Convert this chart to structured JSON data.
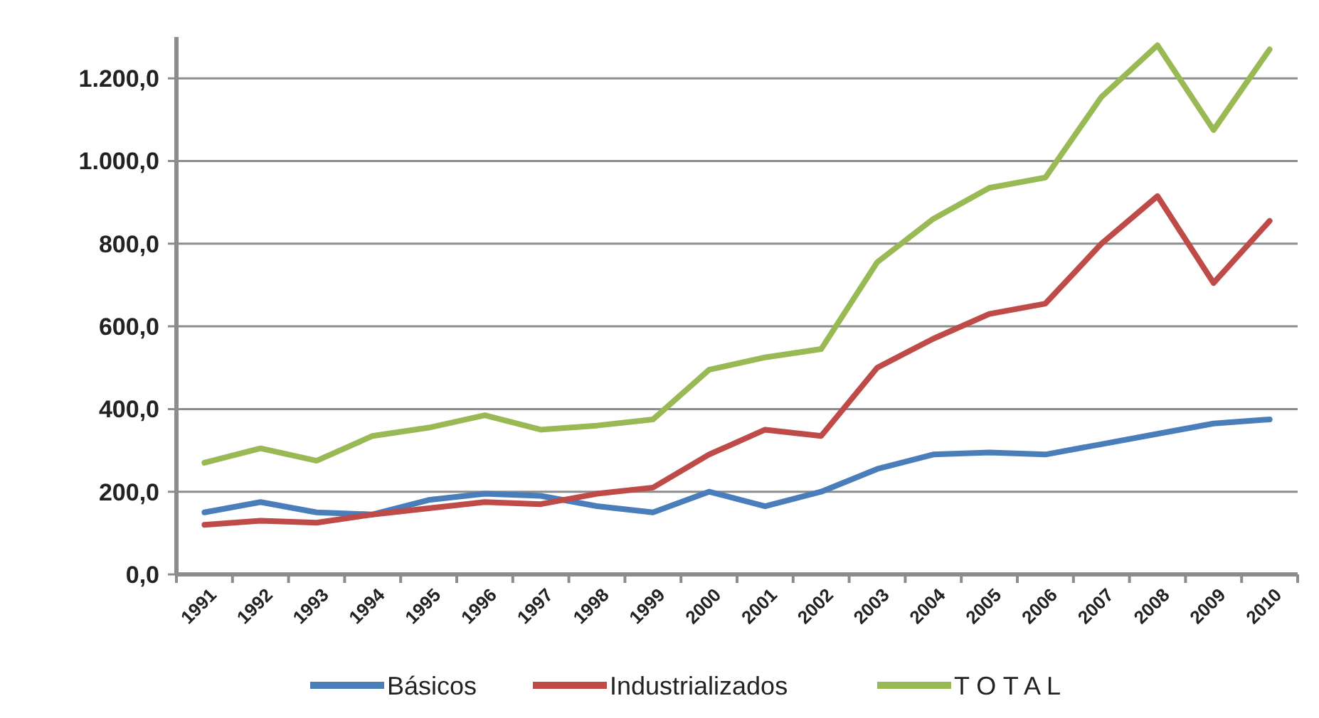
{
  "chart_data": {
    "type": "line",
    "categories": [
      "1991",
      "1992",
      "1993",
      "1994",
      "1995",
      "1996",
      "1997",
      "1998",
      "1999",
      "2000",
      "2001",
      "2002",
      "2003",
      "2004",
      "2005",
      "2006",
      "2007",
      "2008",
      "2009",
      "2010"
    ],
    "series": [
      {
        "name": "Básicos",
        "color": "#4a7ebb",
        "values": [
          150,
          175,
          150,
          145,
          180,
          195,
          190,
          165,
          150,
          200,
          165,
          200,
          255,
          290,
          295,
          290,
          315,
          340,
          365,
          375
        ]
      },
      {
        "name": "Industrializados",
        "color": "#be4b48",
        "values": [
          120,
          130,
          125,
          145,
          160,
          175,
          170,
          195,
          210,
          290,
          350,
          335,
          500,
          570,
          630,
          655,
          800,
          915,
          705,
          855
        ]
      },
      {
        "name": "T O T A L",
        "color": "#98b954",
        "values": [
          270,
          305,
          275,
          335,
          355,
          385,
          350,
          360,
          375,
          495,
          525,
          545,
          755,
          860,
          935,
          960,
          1155,
          1280,
          1075,
          1270
        ]
      }
    ],
    "ylim": [
      0,
      1300
    ],
    "yticks": [
      {
        "value": 0,
        "label": "0,0"
      },
      {
        "value": 200,
        "label": "200,0"
      },
      {
        "value": 400,
        "label": "400,0"
      },
      {
        "value": 600,
        "label": "600,0"
      },
      {
        "value": 800,
        "label": "800,0"
      },
      {
        "value": 1000,
        "label": "1.000,0"
      },
      {
        "value": 1200,
        "label": "1.200,0"
      }
    ],
    "grid": "y",
    "legend": "bottom",
    "marker": "none",
    "line_style": "solid"
  }
}
